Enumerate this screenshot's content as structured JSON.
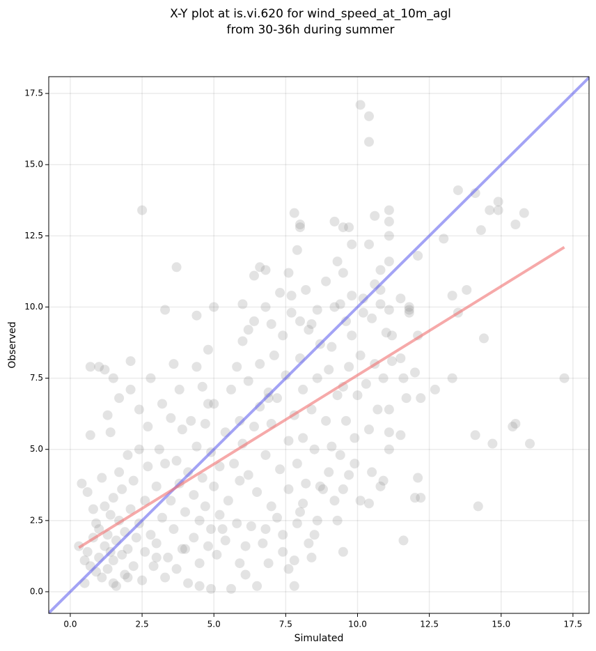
{
  "chart_data": {
    "type": "scatter",
    "title": [
      "X-Y plot at is.vi.620 for wind_speed_at_10m_agl",
      "from 30-36h during summer"
    ],
    "x_label": "Simulated",
    "y_label": "Observed",
    "xlim": [
      -0.75,
      18.06
    ],
    "ylim": [
      -0.76,
      18.09
    ],
    "xticks": [
      {
        "value": 0,
        "label": "0.0"
      },
      2.5,
      {
        "value": 5,
        "label": "5.0"
      },
      7.5,
      {
        "value": 10,
        "label": "10.0"
      },
      12.5,
      {
        "value": 15,
        "label": "15.0"
      },
      17.5
    ],
    "yticks": [
      {
        "value": 0,
        "label": "0.0"
      },
      2.5,
      {
        "value": 5,
        "label": "5.0"
      },
      7.5,
      {
        "value": 10,
        "label": "10.0"
      },
      12.5,
      {
        "value": 15,
        "label": "15.0"
      },
      17.5
    ],
    "grid": true,
    "points": {
      "color": "#808080",
      "x": [
        10.1,
        10.4,
        10.4,
        2.5,
        3.7,
        7.8,
        8.0,
        8.0,
        7.9,
        9.2,
        9.5,
        9.7,
        9.8,
        10.4,
        10.6,
        11.1,
        11.1,
        11.1,
        13.5,
        14.1,
        13.0,
        14.3,
        14.6,
        14.9,
        14.9,
        15.5,
        15.8,
        12.1,
        11.1,
        10.8,
        9.3,
        9.5,
        7.3,
        6.6,
        6.4,
        6.8,
        7.6,
        8.2,
        8.9,
        6.0,
        5.0,
        3.3,
        4.4,
        13.5,
        13.3,
        13.8,
        11.5,
        11.8,
        11.8,
        11.1,
        10.6,
        10.8,
        14.4,
        12.1,
        11.2,
        9.8,
        8.0,
        8.4,
        17.2,
        16.0,
        15.5,
        15.4,
        14.7,
        14.1,
        14.2,
        12.2,
        12.0,
        12.1,
        11.6,
        12.7,
        13.3,
        12.0,
        11.6,
        11.7,
        11.5,
        11.1,
        11.1,
        11.1,
        10.9,
        10.8,
        10.5,
        10.4,
        10.1,
        9.9,
        9.7,
        9.5,
        9.5,
        9.3,
        9.2,
        8.7,
        8.6,
        8.4,
        8.3,
        8.1,
        8.0,
        7.8,
        7.8,
        7.6,
        7.4,
        6.9,
        6.5,
        6.1,
        5.9,
        5.6,
        4.9,
        4.5,
        1.0,
        0.7,
        1.2,
        2.1,
        2.8,
        1.5,
        2.1,
        1.7,
        4.8,
        3.6,
        4.4,
        1.3,
        0.7,
        1.4,
        0.3,
        0.4,
        0.5,
        0.5,
        0.6,
        0.6,
        0.7,
        0.8,
        0.8,
        0.9,
        0.9,
        1.0,
        1.0,
        1.1,
        1.1,
        1.2,
        1.2,
        1.3,
        1.3,
        1.4,
        1.4,
        1.5,
        1.5,
        1.6,
        1.6,
        1.7,
        1.7,
        1.8,
        1.8,
        1.9,
        1.9,
        2.0,
        2.0,
        2.1,
        2.2,
        2.2,
        2.3,
        2.4,
        2.4,
        2.5,
        2.6,
        2.6,
        2.7,
        2.7,
        2.8,
        2.9,
        3.0,
        3.0,
        3.1,
        3.2,
        3.3,
        3.3,
        3.4,
        3.5,
        3.5,
        3.6,
        3.7,
        3.7,
        3.8,
        3.9,
        3.9,
        4.0,
        4.1,
        4.1,
        4.2,
        4.3,
        4.3,
        4.4,
        4.5,
        4.5,
        4.6,
        4.7,
        4.7,
        4.8,
        4.9,
        4.9,
        5.0,
        5.0,
        5.1,
        5.2,
        5.2,
        5.4,
        5.4,
        5.5,
        5.6,
        5.7,
        5.8,
        5.9,
        5.9,
        6.0,
        6.0,
        6.1,
        6.2,
        6.2,
        6.3,
        6.4,
        6.4,
        6.5,
        6.6,
        6.6,
        6.7,
        6.8,
        6.8,
        6.9,
        7.0,
        7.0,
        7.1,
        7.2,
        7.2,
        7.3,
        7.4,
        7.4,
        7.5,
        7.6,
        7.6,
        7.7,
        7.8,
        7.9,
        7.9,
        8.0,
        8.1,
        8.1,
        8.2,
        8.3,
        8.4,
        8.5,
        8.6,
        8.7,
        8.8,
        8.9,
        9.0,
        9.1,
        9.1,
        9.2,
        9.3,
        9.4,
        9.5,
        9.6,
        9.6,
        9.7,
        9.8,
        9.9,
        10.0,
        10.1,
        10.2,
        10.3,
        10.4,
        10.5,
        10.6,
        10.7,
        10.8,
        10.9,
        11.0,
        11.2,
        11.5,
        11.8,
        12.2,
        9.0,
        8.5,
        6.8,
        5.3,
        4.0,
        3.0,
        2.0,
        1.5,
        3.8,
        4.6,
        5.8,
        6.2,
        7.0,
        7.7,
        8.6,
        9.4,
        10.2,
        3.2,
        2.4,
        4.8,
        6.9
      ],
      "y": [
        17.1,
        16.7,
        15.8,
        13.4,
        11.4,
        13.3,
        12.9,
        12.8,
        12.0,
        13.0,
        12.8,
        12.8,
        12.2,
        12.2,
        13.2,
        13.4,
        13.0,
        12.5,
        14.1,
        14.0,
        12.4,
        12.7,
        13.4,
        13.4,
        13.7,
        12.9,
        13.3,
        11.8,
        11.6,
        11.3,
        11.6,
        11.2,
        10.5,
        11.4,
        11.1,
        11.3,
        11.2,
        10.6,
        10.9,
        10.1,
        10.0,
        9.9,
        9.7,
        9.8,
        10.4,
        10.6,
        10.3,
        10.0,
        9.8,
        9.9,
        10.8,
        10.6,
        8.9,
        9.0,
        9.0,
        9.0,
        9.5,
        9.4,
        7.5,
        5.2,
        5.9,
        5.8,
        5.2,
        5.5,
        3.0,
        3.3,
        3.3,
        4.0,
        1.8,
        7.1,
        7.5,
        7.7,
        7.5,
        6.8,
        5.5,
        6.4,
        5.6,
        5.0,
        3.9,
        3.7,
        4.2,
        3.1,
        3.2,
        4.5,
        4.1,
        3.6,
        1.4,
        2.5,
        3.2,
        3.7,
        2.5,
        1.2,
        1.7,
        3.1,
        2.8,
        1.1,
        0.2,
        0.8,
        2.0,
        1.0,
        0.2,
        0.6,
        1.0,
        0.1,
        0.1,
        0.2,
        7.9,
        7.9,
        7.8,
        8.1,
        7.5,
        7.5,
        7.1,
        6.8,
        8.5,
        8.0,
        7.9,
        6.2,
        5.5,
        5.6,
        1.6,
        3.8,
        1.1,
        0.3,
        3.5,
        1.4,
        0.9,
        2.9,
        1.9,
        2.4,
        0.7,
        1.2,
        2.2,
        0.5,
        4.0,
        1.6,
        3.0,
        0.8,
        2.0,
        1.4,
        2.7,
        1.1,
        3.3,
        0.2,
        1.8,
        4.2,
        2.5,
        1.3,
        3.6,
        0.6,
        2.1,
        4.8,
        1.5,
        2.9,
        0.9,
        3.9,
        1.9,
        5.0,
        2.4,
        0.4,
        1.4,
        3.2,
        5.8,
        4.4,
        2.0,
        0.9,
        3.7,
        1.7,
        5.0,
        2.6,
        0.5,
        4.5,
        1.2,
        6.1,
        3.2,
        2.2,
        0.8,
        4.6,
        3.8,
        1.5,
        5.7,
        2.8,
        0.3,
        4.2,
        6.0,
        1.9,
        3.4,
        5.1,
        2.5,
        1.0,
        4.0,
        5.9,
        3.0,
        1.6,
        4.9,
        2.2,
        6.6,
        3.7,
        1.3,
        4.4,
        2.7,
        5.6,
        1.8,
        3.2,
        7.1,
        4.5,
        2.4,
        6.0,
        3.9,
        8.8,
        5.2,
        1.6,
        7.4,
        4.1,
        2.3,
        9.5,
        5.8,
        3.5,
        8.0,
        6.5,
        1.7,
        4.8,
        10.0,
        7.0,
        3.0,
        5.9,
        8.3,
        2.6,
        6.8,
        4.3,
        9.0,
        1.4,
        7.6,
        3.6,
        5.3,
        9.8,
        6.2,
        2.4,
        4.5,
        8.2,
        5.4,
        7.1,
        3.8,
        9.2,
        6.4,
        5.0,
        7.5,
        8.7,
        3.6,
        6.0,
        7.8,
        5.1,
        8.6,
        10.0,
        6.9,
        4.8,
        7.2,
        9.5,
        6.0,
        7.9,
        10.4,
        5.4,
        6.9,
        8.3,
        9.8,
        7.3,
        5.7,
        9.6,
        8.0,
        6.4,
        10.1,
        7.5,
        9.1,
        8.1,
        8.2,
        9.9,
        6.8,
        4.2,
        2.0,
        2.2,
        2.2,
        1.5,
        1.2,
        0.5,
        0.3,
        7.1,
        7.2,
        7.9,
        9.2,
        9.4,
        10.4,
        9.9,
        10.1,
        10.3,
        6.6,
        6.4,
        6.6,
        6.8
      ]
    },
    "lines": [
      {
        "color": "#6666ee",
        "x": [
          -0.75,
          18.06
        ],
        "y": [
          -0.75,
          18.06
        ]
      },
      {
        "color": "#f07070",
        "x": [
          0.3,
          17.2
        ],
        "y": [
          1.55,
          12.1
        ]
      }
    ]
  }
}
